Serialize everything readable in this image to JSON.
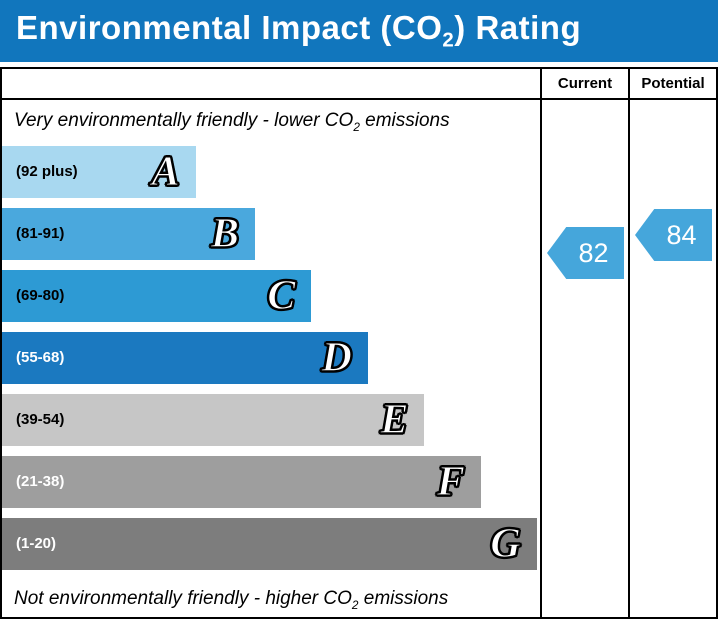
{
  "title": {
    "pre": "Environmental Impact (CO",
    "sub": "2",
    "post": ") Rating"
  },
  "table_header": {
    "current": "Current",
    "potential": "Potential"
  },
  "notes": {
    "top_pre": "Very environmentally friendly - lower CO",
    "top_sub": "2",
    "top_post": " emissions",
    "bottom_pre": "Not environmentally friendly - higher CO",
    "bottom_sub": "2",
    "bottom_post": " emissions"
  },
  "colors": {
    "title_bg": "#1176bd",
    "arrow": "#45a6db"
  },
  "chart_data": {
    "type": "bar",
    "title": "Environmental Impact (CO2) Rating",
    "bands": [
      {
        "letter": "A",
        "range": "(92 plus)",
        "min": 92,
        "max": 100,
        "color": "#a8d8f0",
        "text_color": "#000000",
        "width_pct": 36
      },
      {
        "letter": "B",
        "range": "(81-91)",
        "min": 81,
        "max": 91,
        "color": "#4aa8dd",
        "text_color": "#000000",
        "width_pct": 47
      },
      {
        "letter": "C",
        "range": "(69-80)",
        "min": 69,
        "max": 80,
        "color": "#2d9ad4",
        "text_color": "#000000",
        "width_pct": 57.5
      },
      {
        "letter": "D",
        "range": "(55-68)",
        "min": 55,
        "max": 68,
        "color": "#1b79c0",
        "text_color": "#ffffff",
        "width_pct": 68
      },
      {
        "letter": "E",
        "range": "(39-54)",
        "min": 39,
        "max": 54,
        "color": "#c6c6c6",
        "text_color": "#000000",
        "width_pct": 78.5
      },
      {
        "letter": "F",
        "range": "(21-38)",
        "min": 21,
        "max": 38,
        "color": "#9e9e9e",
        "text_color": "#ffffff",
        "width_pct": 89
      },
      {
        "letter": "G",
        "range": "(1-20)",
        "min": 1,
        "max": 20,
        "color": "#7d7d7d",
        "text_color": "#ffffff",
        "width_pct": 99.4
      }
    ],
    "current": {
      "value": 82,
      "band": "B"
    },
    "potential": {
      "value": 84,
      "band": "B"
    }
  }
}
